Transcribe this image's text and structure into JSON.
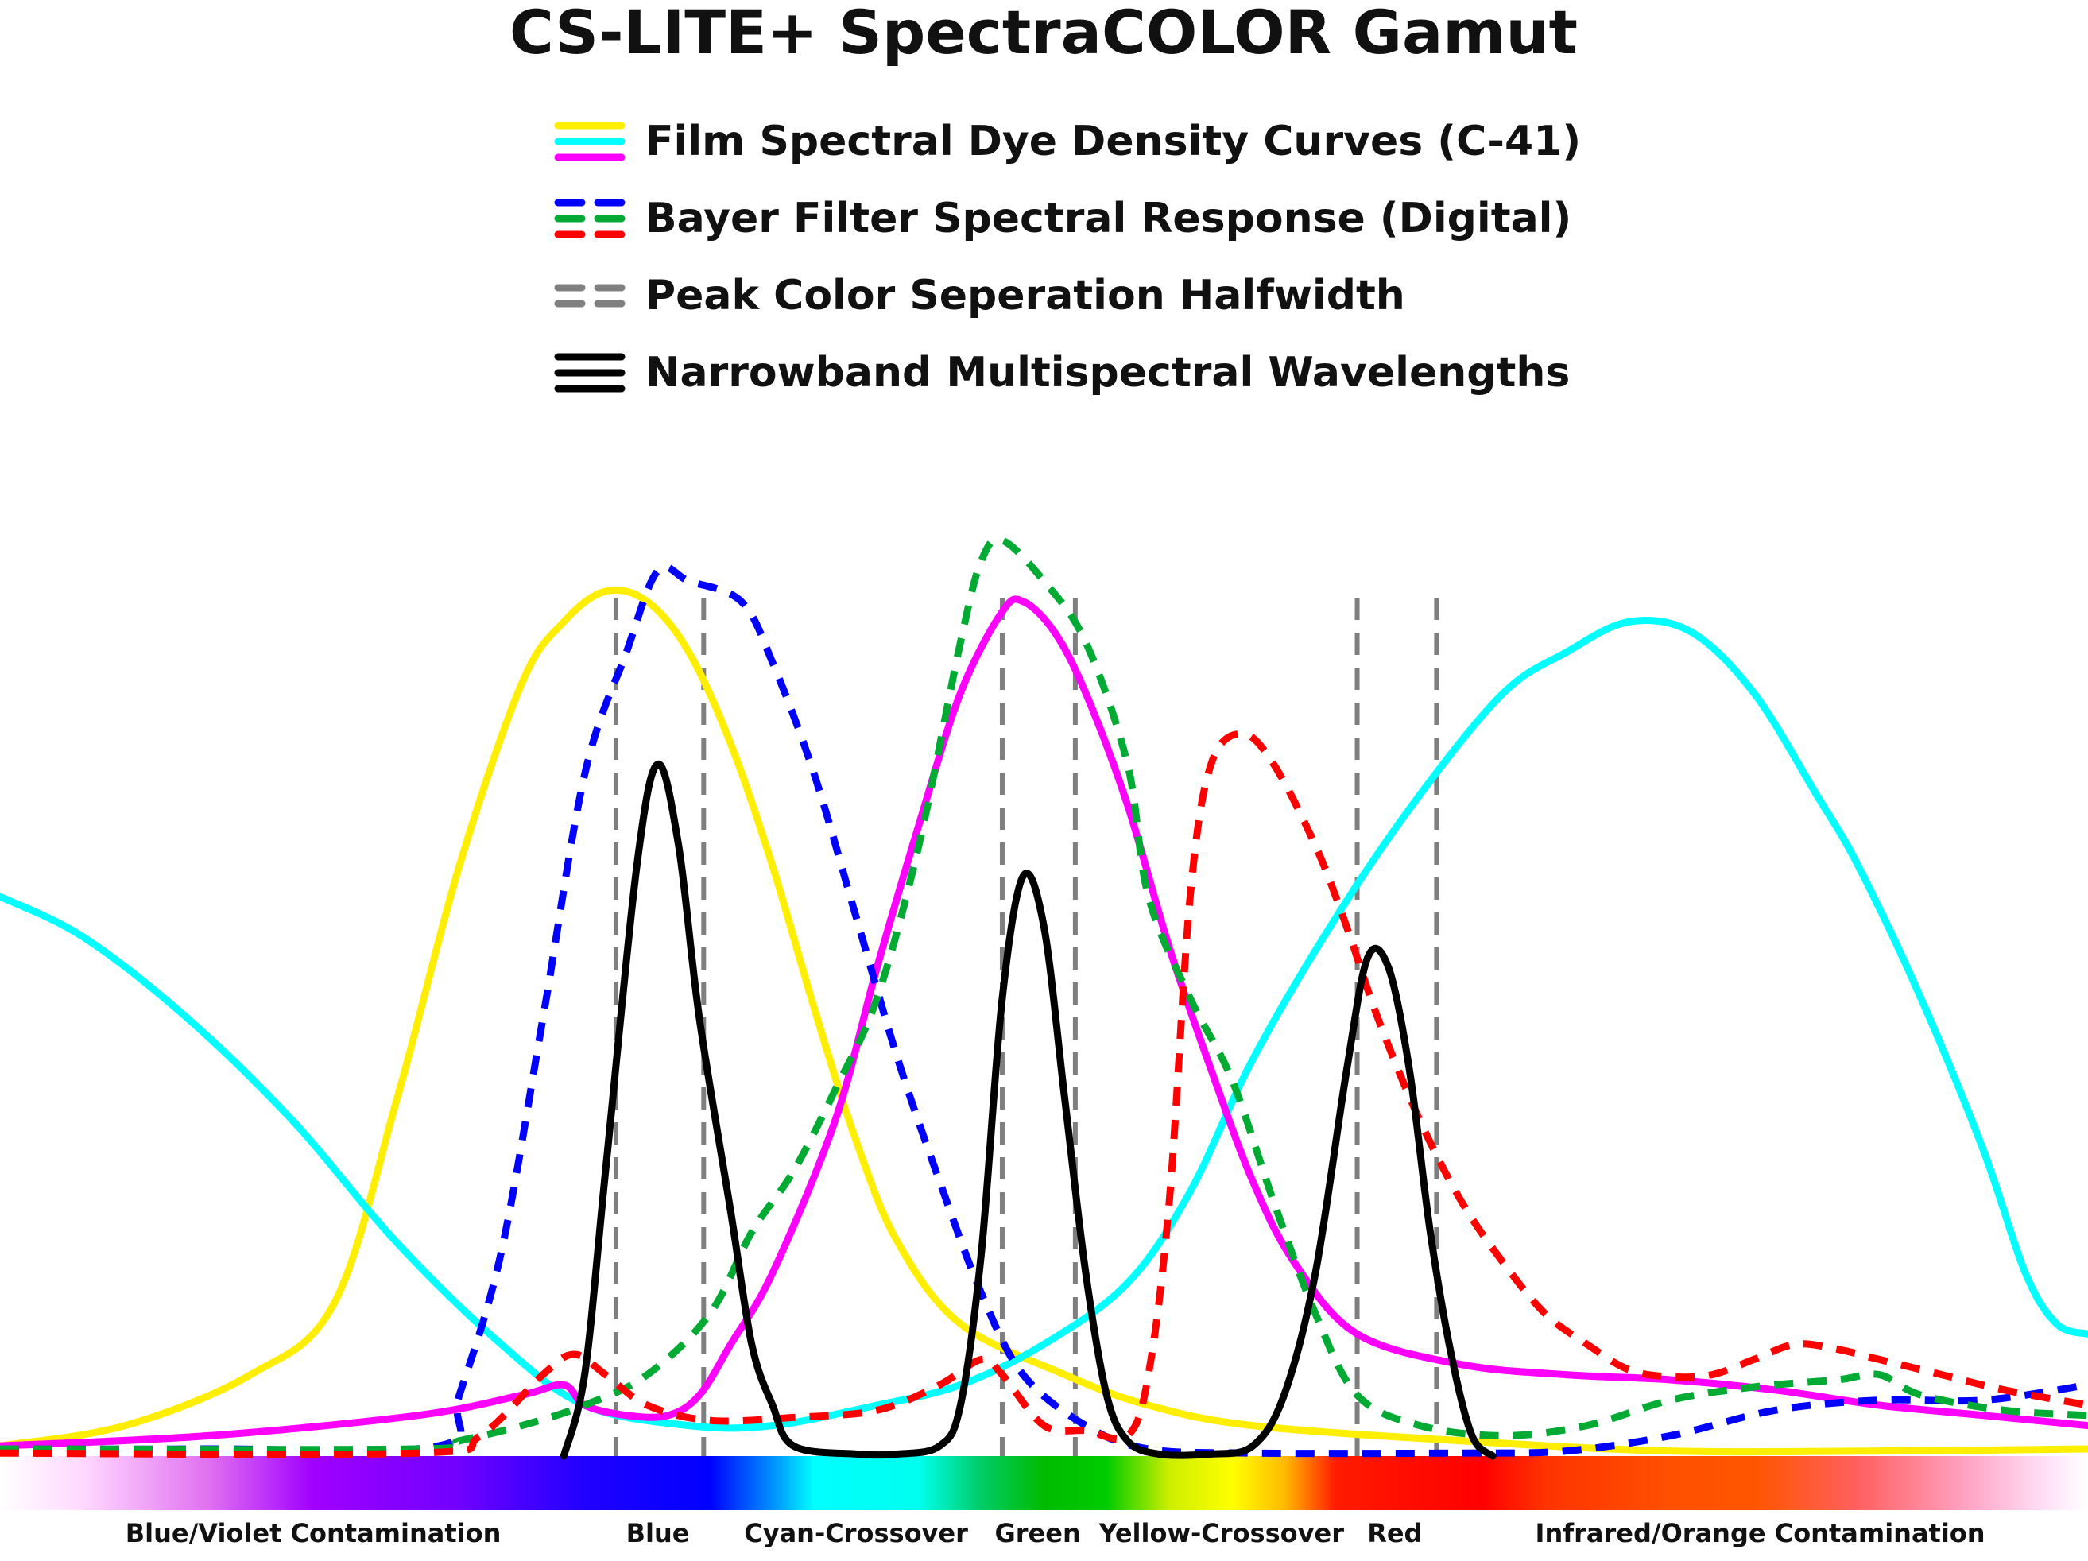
{
  "chart_data": {
    "type": "line",
    "title": "CS-LITE+ SpectraCOLOR Gamut",
    "xlabel": "",
    "ylabel": "",
    "xlim": [
      0,
      100
    ],
    "ylim": [
      0,
      100
    ],
    "grid": false,
    "legend": [
      {
        "label": "Film Spectral Dye Density Curves (C-41)",
        "colors": [
          "#ffee00",
          "#00ffff",
          "#ff00ff"
        ],
        "style": "solid"
      },
      {
        "label": "Bayer Filter Spectral Response (Digital)",
        "colors": [
          "#0000ff",
          "#00aa33",
          "#ff0000"
        ],
        "style": "dashed"
      },
      {
        "label": "Peak Color Seperation Halfwidth",
        "colors": [
          "#808080",
          "#808080"
        ],
        "style": "dashed"
      },
      {
        "label": "Narrowband Multispectral Wavelengths",
        "colors": [
          "#000000",
          "#000000",
          "#000000"
        ],
        "style": "solid"
      }
    ],
    "series": [
      {
        "name": "Film Yellow Dye",
        "color": "#ffee00",
        "style": "solid",
        "points": [
          [
            0,
            1
          ],
          [
            6,
            3
          ],
          [
            12,
            8
          ],
          [
            16,
            15
          ],
          [
            19,
            35
          ],
          [
            22,
            58
          ],
          [
            25,
            76
          ],
          [
            27,
            82
          ],
          [
            29,
            85
          ],
          [
            31,
            84
          ],
          [
            33,
            79
          ],
          [
            35,
            70
          ],
          [
            37,
            58
          ],
          [
            39,
            44
          ],
          [
            41,
            31
          ],
          [
            43,
            21
          ],
          [
            46,
            13
          ],
          [
            51,
            8
          ],
          [
            55,
            5
          ],
          [
            60,
            3
          ],
          [
            70,
            1.5
          ],
          [
            80,
            0.5
          ],
          [
            90,
            0.5
          ],
          [
            100,
            0.7
          ]
        ]
      },
      {
        "name": "Film Cyan Dye",
        "color": "#00ffff",
        "style": "solid",
        "points": [
          [
            0,
            55
          ],
          [
            4,
            51
          ],
          [
            9,
            43
          ],
          [
            14,
            33
          ],
          [
            19,
            21
          ],
          [
            24,
            11
          ],
          [
            28,
            5
          ],
          [
            33,
            3
          ],
          [
            37,
            3
          ],
          [
            42,
            5
          ],
          [
            46,
            7
          ],
          [
            50,
            11
          ],
          [
            54,
            17
          ],
          [
            57,
            26
          ],
          [
            60,
            39
          ],
          [
            64,
            53
          ],
          [
            68,
            65
          ],
          [
            72,
            75
          ],
          [
            75,
            79
          ],
          [
            78,
            82
          ],
          [
            81,
            81
          ],
          [
            84,
            75
          ],
          [
            87,
            65
          ],
          [
            89,
            58
          ],
          [
            92,
            45
          ],
          [
            95,
            30
          ],
          [
            97,
            18
          ],
          [
            98.5,
            13
          ],
          [
            100,
            12
          ]
        ]
      },
      {
        "name": "Film Magenta Dye",
        "color": "#ff00ff",
        "style": "solid",
        "points": [
          [
            0,
            1
          ],
          [
            10,
            2
          ],
          [
            20,
            4
          ],
          [
            25,
            6
          ],
          [
            27,
            7
          ],
          [
            28,
            5
          ],
          [
            30,
            4
          ],
          [
            32,
            4
          ],
          [
            33.5,
            6
          ],
          [
            35,
            11
          ],
          [
            37,
            18
          ],
          [
            40,
            33
          ],
          [
            42,
            48
          ],
          [
            44,
            62
          ],
          [
            46,
            75
          ],
          [
            48,
            83
          ],
          [
            49,
            84
          ],
          [
            50.5,
            81
          ],
          [
            52,
            75
          ],
          [
            54,
            64
          ],
          [
            56,
            50
          ],
          [
            58,
            38
          ],
          [
            60,
            27
          ],
          [
            62,
            19
          ],
          [
            65,
            12
          ],
          [
            70,
            9
          ],
          [
            75,
            8
          ],
          [
            80,
            7.5
          ],
          [
            85,
            6.5
          ],
          [
            90,
            5
          ],
          [
            95,
            4
          ],
          [
            100,
            3
          ]
        ]
      },
      {
        "name": "Bayer Blue",
        "color": "#0000ff",
        "style": "dashed",
        "points": [
          [
            0,
            0.7
          ],
          [
            10,
            0.7
          ],
          [
            21,
            1
          ],
          [
            22,
            6
          ],
          [
            24,
            20
          ],
          [
            26,
            43
          ],
          [
            28,
            67
          ],
          [
            30,
            79
          ],
          [
            31.5,
            87
          ],
          [
            33,
            86
          ],
          [
            35.5,
            84
          ],
          [
            37,
            78
          ],
          [
            39,
            67
          ],
          [
            41,
            53
          ],
          [
            43,
            39
          ],
          [
            45,
            27
          ],
          [
            47,
            16
          ],
          [
            49,
            8
          ],
          [
            52,
            3
          ],
          [
            55,
            0.7
          ],
          [
            60,
            0.3
          ],
          [
            70,
            0.3
          ],
          [
            75,
            0.5
          ],
          [
            80,
            2
          ],
          [
            85,
            4.5
          ],
          [
            90,
            5.5
          ],
          [
            95,
            5.5
          ],
          [
            100,
            7
          ]
        ]
      },
      {
        "name": "Bayer Green",
        "color": "#00aa33",
        "style": "dashed",
        "points": [
          [
            0,
            0.7
          ],
          [
            20,
            0.7
          ],
          [
            22,
            1.5
          ],
          [
            25,
            3
          ],
          [
            28,
            5
          ],
          [
            31,
            8
          ],
          [
            34,
            14
          ],
          [
            36,
            22
          ],
          [
            38,
            28
          ],
          [
            40,
            36
          ],
          [
            42,
            45
          ],
          [
            44,
            60
          ],
          [
            46,
            80
          ],
          [
            47,
            88
          ],
          [
            48,
            90
          ],
          [
            50,
            86
          ],
          [
            52,
            80
          ],
          [
            54,
            68
          ],
          [
            55,
            55
          ],
          [
            57,
            45
          ],
          [
            59,
            37
          ],
          [
            61,
            25
          ],
          [
            63,
            14
          ],
          [
            65,
            6
          ],
          [
            68,
            3
          ],
          [
            72,
            2
          ],
          [
            76,
            3
          ],
          [
            80,
            5.5
          ],
          [
            84,
            6.8
          ],
          [
            88,
            7.5
          ],
          [
            90,
            8
          ],
          [
            92,
            6
          ],
          [
            96,
            4.5
          ],
          [
            100,
            4
          ]
        ]
      },
      {
        "name": "Bayer Red",
        "color": "#ff0000",
        "style": "dashed",
        "points": [
          [
            0,
            0.3
          ],
          [
            20,
            0.3
          ],
          [
            23,
            2
          ],
          [
            26,
            8
          ],
          [
            27.5,
            10
          ],
          [
            29,
            8
          ],
          [
            31,
            5
          ],
          [
            34,
            3.5
          ],
          [
            38,
            3.8
          ],
          [
            42,
            4.5
          ],
          [
            45,
            7
          ],
          [
            47,
            9.5
          ],
          [
            48,
            8
          ],
          [
            50,
            3
          ],
          [
            52,
            2.5
          ],
          [
            54,
            2
          ],
          [
            55,
            8
          ],
          [
            56,
            25
          ],
          [
            57,
            55
          ],
          [
            58,
            68
          ],
          [
            59.5,
            71
          ],
          [
            61,
            68
          ],
          [
            63,
            60
          ],
          [
            64.5,
            52
          ],
          [
            66,
            43
          ],
          [
            68,
            33
          ],
          [
            70,
            25
          ],
          [
            72,
            19
          ],
          [
            74,
            14
          ],
          [
            76,
            11
          ],
          [
            78,
            8.5
          ],
          [
            80,
            7.8
          ],
          [
            82,
            8
          ],
          [
            84,
            9.5
          ],
          [
            86,
            11
          ],
          [
            88,
            10.5
          ],
          [
            90,
            9.5
          ],
          [
            93,
            8
          ],
          [
            96,
            6.5
          ],
          [
            100,
            5
          ]
        ]
      },
      {
        "name": "Narrowband Blue",
        "color": "#000000",
        "style": "solid",
        "points": [
          [
            27,
            0
          ],
          [
            28,
            8
          ],
          [
            29,
            28
          ],
          [
            30.5,
            58
          ],
          [
            31.5,
            68
          ],
          [
            32.5,
            60
          ],
          [
            33.5,
            43
          ],
          [
            35,
            24
          ],
          [
            36,
            11
          ],
          [
            37,
            5
          ],
          [
            38,
            1
          ],
          [
            41,
            0.2
          ],
          [
            43,
            0.2
          ],
          [
            45,
            1
          ],
          [
            46,
            5
          ],
          [
            47,
            20
          ],
          [
            48,
            45
          ],
          [
            49,
            57
          ],
          [
            50,
            52
          ],
          [
            51,
            35
          ],
          [
            52,
            18
          ],
          [
            53,
            6
          ],
          [
            54,
            1.5
          ],
          [
            55.5,
            0.2
          ],
          [
            58,
            0.2
          ],
          [
            60,
            1
          ],
          [
            61.5,
            6
          ],
          [
            63,
            18
          ],
          [
            64.5,
            38
          ],
          [
            65.5,
            49
          ],
          [
            66.5,
            48
          ],
          [
            67.5,
            38
          ],
          [
            68.5,
            22
          ],
          [
            69.5,
            10
          ],
          [
            70.5,
            2
          ],
          [
            71.5,
            0
          ]
        ]
      }
    ],
    "halfwidth_markers_x": [
      29.5,
      33.7,
      48,
      51.5,
      65,
      68.8
    ],
    "band_labels": [
      {
        "label": "Blue/Violet Contamination",
        "x": 15
      },
      {
        "label": "Blue",
        "x": 31.5
      },
      {
        "label": "Cyan-Crossover",
        "x": 41
      },
      {
        "label": "Green",
        "x": 49.7
      },
      {
        "label": "Yellow-Crossover",
        "x": 58.5
      },
      {
        "label": "Red",
        "x": 66.8
      },
      {
        "label": "Infrared/Orange Contamination",
        "x": 84.3
      }
    ]
  }
}
